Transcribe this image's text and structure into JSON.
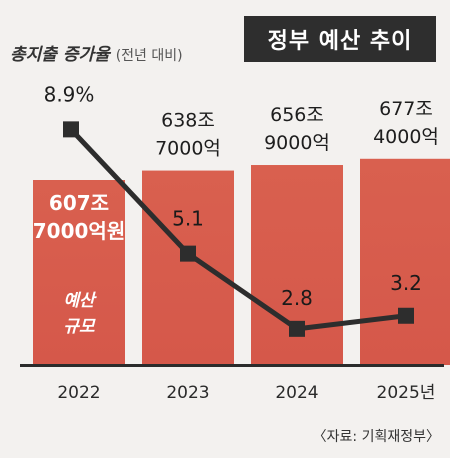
{
  "header": {
    "title": "정부 예산 추이",
    "subtitle": "총지출 증가율",
    "subtitle_note": "(전년 대비)",
    "source": "〈자료: 기획재정부〉"
  },
  "colors": {
    "bar": "#d5584a",
    "bar_top": "#d9604f",
    "line": "#2d2d2d",
    "marker": "#2d2d2d",
    "title_bg": "#2e2e2e"
  },
  "chart_data": {
    "type": "bar",
    "categories": [
      "2022",
      "2023",
      "2024",
      "2025년"
    ],
    "series": [
      {
        "name": "예산 규모",
        "values": [
          607.7,
          638.7,
          656.9,
          677.4
        ],
        "labels": [
          [
            "607조",
            "7000억원"
          ],
          [
            "638조",
            "7000억"
          ],
          [
            "656조",
            "9000억"
          ],
          [
            "677조",
            "4000억"
          ]
        ],
        "unit": "조원"
      },
      {
        "name": "총지출 증가율",
        "values": [
          8.9,
          5.1,
          2.8,
          3.2
        ],
        "labels": [
          "8.9%",
          "5.1",
          "2.8",
          "3.2"
        ],
        "unit": "%"
      }
    ],
    "bar_note": [
      "예산",
      "규모"
    ],
    "legend": "none",
    "grid": false
  }
}
